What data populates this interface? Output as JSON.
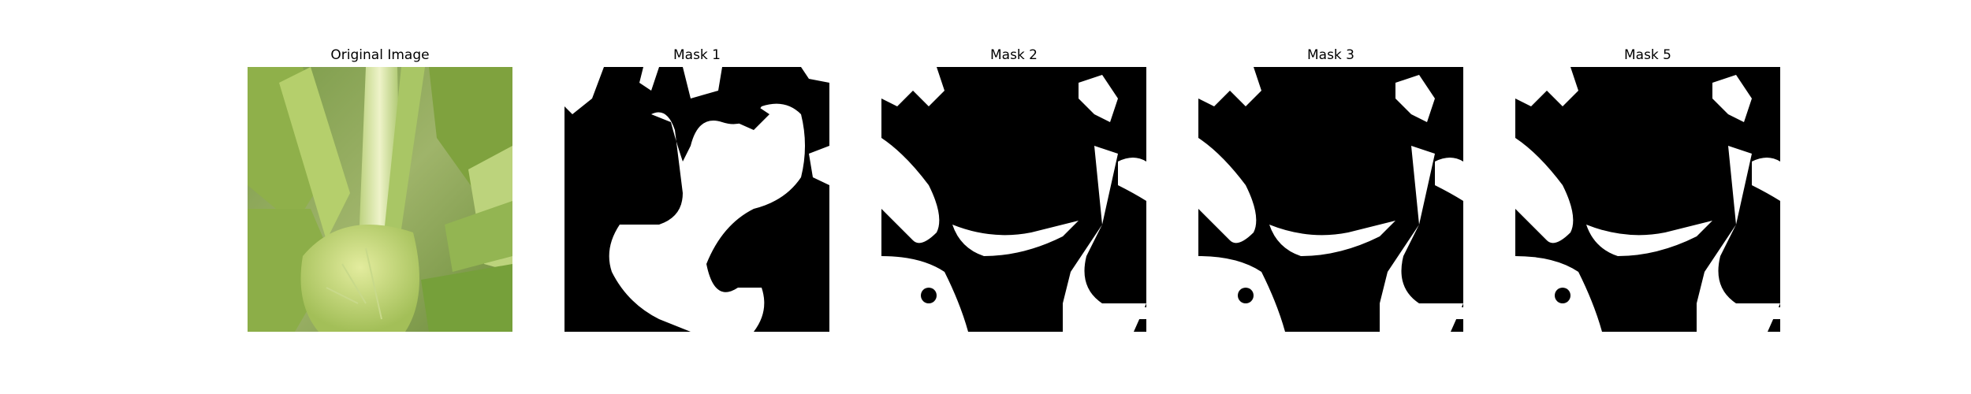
{
  "panels": [
    {
      "title": "Original Image"
    },
    {
      "title": "Mask 1"
    },
    {
      "title": "Mask 2"
    },
    {
      "title": "Mask 3"
    },
    {
      "title": "Mask 5"
    }
  ],
  "colors": {
    "mask_foreground": "#ffffff",
    "mask_background": "#000000",
    "leaf_light": "#d7e58c",
    "leaf_mid": "#a6c55a",
    "leaf_dark": "#5f8a2e"
  }
}
